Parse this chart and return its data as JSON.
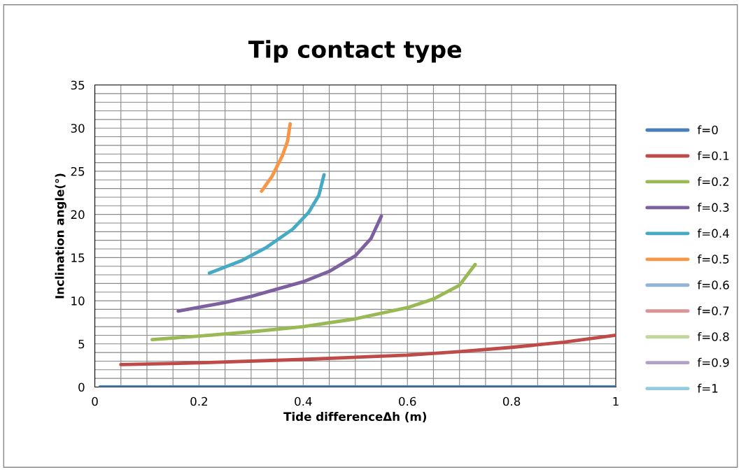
{
  "chart_data": {
    "type": "line",
    "title": "Tip contact type",
    "xlabel": "Tide differenceΔh (m)",
    "ylabel": "Inclination angle(°)",
    "xlim": [
      0,
      1
    ],
    "xticks": [
      0,
      0.2,
      0.4,
      0.6,
      0.8,
      1
    ],
    "ylim": [
      0,
      35
    ],
    "yticks": [
      0,
      5,
      10,
      15,
      20,
      25,
      30,
      35
    ],
    "grid": true,
    "legend": "right",
    "marker": "none",
    "line_style": "solid",
    "series": [
      {
        "name": "f=0",
        "color": "#4a7ebb",
        "x": [
          0.01,
          0.5,
          1.0
        ],
        "values": [
          0,
          0,
          0
        ]
      },
      {
        "name": "f=0.1",
        "color": "#be4b48",
        "x": [
          0.05,
          0.2,
          0.4,
          0.6,
          0.7,
          0.8,
          0.9,
          1.0
        ],
        "values": [
          2.6,
          2.8,
          3.2,
          3.7,
          4.1,
          4.6,
          5.2,
          6.0
        ]
      },
      {
        "name": "f=0.2",
        "color": "#98b954",
        "x": [
          0.11,
          0.2,
          0.3,
          0.4,
          0.5,
          0.6,
          0.65,
          0.7,
          0.73
        ],
        "values": [
          5.5,
          5.9,
          6.4,
          7.0,
          7.9,
          9.2,
          10.2,
          11.8,
          14.2
        ]
      },
      {
        "name": "f=0.3",
        "color": "#7d60a0",
        "x": [
          0.16,
          0.25,
          0.3,
          0.4,
          0.45,
          0.5,
          0.53,
          0.55
        ],
        "values": [
          8.8,
          9.8,
          10.5,
          12.2,
          13.4,
          15.2,
          17.2,
          19.8
        ]
      },
      {
        "name": "f=0.4",
        "color": "#46aac5",
        "x": [
          0.22,
          0.28,
          0.33,
          0.38,
          0.41,
          0.43,
          0.44
        ],
        "values": [
          13.2,
          14.6,
          16.2,
          18.3,
          20.2,
          22.2,
          24.6
        ]
      },
      {
        "name": "f=0.5",
        "color": "#f79646",
        "x": [
          0.32,
          0.34,
          0.36,
          0.37,
          0.375
        ],
        "values": [
          22.7,
          24.4,
          26.8,
          28.5,
          30.5
        ]
      },
      {
        "name": "f=0.6",
        "color": "#95b3d7"
      },
      {
        "name": "f=0.7",
        "color": "#d99694"
      },
      {
        "name": "f=0.8",
        "color": "#c3d69b"
      },
      {
        "name": "f=0.9",
        "color": "#b3a2c7"
      },
      {
        "name": "f=1",
        "color": "#93cddd"
      }
    ]
  }
}
